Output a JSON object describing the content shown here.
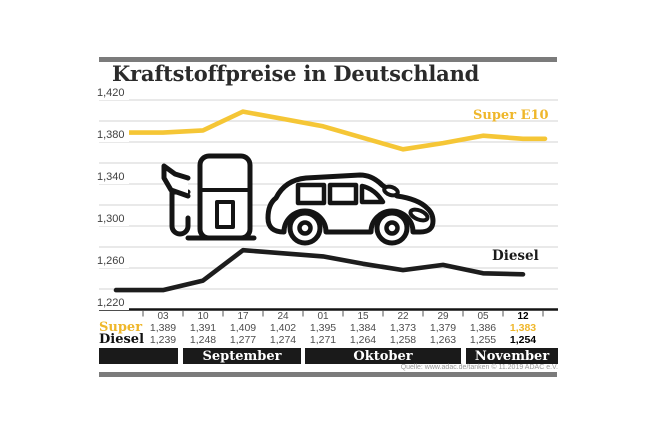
{
  "title": "Kraftstoffpreise in Deutschland",
  "source": "Quelle: www.adac.de/tanken   © 11.2019   ADAC e.V.",
  "labels": {
    "super_series": "Super E10",
    "diesel_series": "Diesel"
  },
  "months": [
    "September",
    "Oktober",
    "November"
  ],
  "icons": [
    "fuel-pump-icon",
    "car-icon"
  ],
  "colors": {
    "super_line": "#F5C636",
    "super_text": "#EFB72B",
    "diesel_line": "#1d1d1d",
    "grid": "#dcdcdc",
    "axis": "#141414",
    "gray_bar": "#7b7b7b",
    "month_bar_bg": "#1a1a1a"
  },
  "chart_data": {
    "type": "line",
    "title": "Kraftstoffpreise in Deutschland",
    "categories": [
      "03",
      "10",
      "17",
      "24",
      "01",
      "15",
      "22",
      "29",
      "05",
      "12"
    ],
    "month_groups": [
      {
        "label": "September",
        "cols": 4
      },
      {
        "label": "Oktober",
        "cols": 4
      },
      {
        "label": "November",
        "cols": 2
      }
    ],
    "series": [
      {
        "name": "Super E10",
        "values": [
          1389,
          1391,
          1409,
          1402,
          1395,
          1384,
          1373,
          1379,
          1386,
          1383
        ]
      },
      {
        "name": "Diesel",
        "values": [
          1239,
          1248,
          1277,
          1274,
          1271,
          1264,
          1258,
          1263,
          1255,
          1254
        ]
      }
    ],
    "ylim": [
      1220,
      1420
    ],
    "grid_step": 20,
    "y_tick_labels": [
      "1,420",
      "1,380",
      "1,340",
      "1,300",
      "1,260",
      "1,220"
    ],
    "legend_position": "inline-right",
    "grid": true
  },
  "table": {
    "row_labels": {
      "super": "Super",
      "diesel": "Diesel"
    },
    "dates": [
      "03",
      "10",
      "17",
      "24",
      "01",
      "15",
      "22",
      "29",
      "05",
      "12"
    ],
    "super_values": [
      "1,389",
      "1,391",
      "1,409",
      "1,402",
      "1,395",
      "1,384",
      "1,373",
      "1,379",
      "1,386",
      "1,383"
    ],
    "diesel_values": [
      "1,239",
      "1,248",
      "1,277",
      "1,274",
      "1,271",
      "1,264",
      "1,258",
      "1,263",
      "1,255",
      "1,254"
    ],
    "bold_last_column": true
  }
}
